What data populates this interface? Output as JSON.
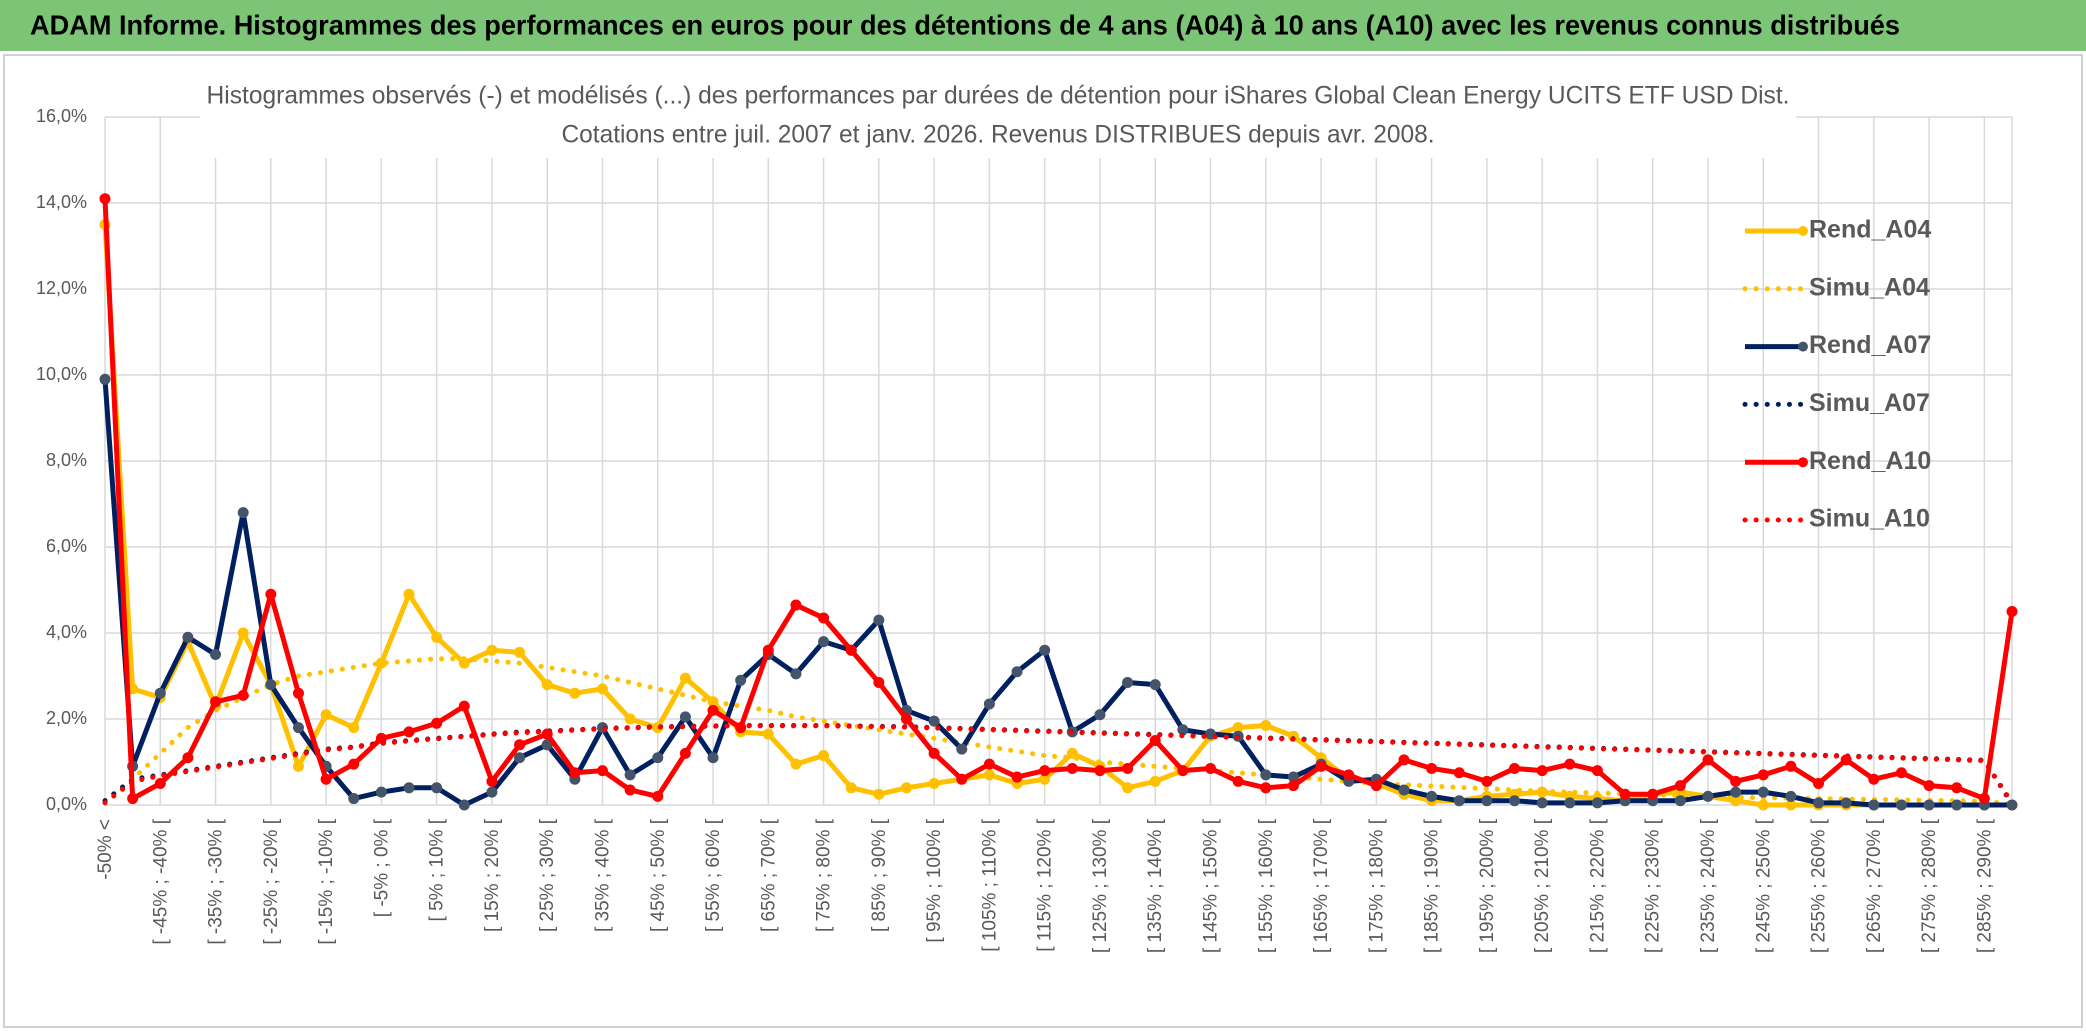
{
  "header": {
    "title": "ADAM Informe. Histogrammes des performances en euros pour des détentions de 4 ans (A04) à 10 ans (A10) avec les revenus connus distribués"
  },
  "chart_data": {
    "type": "line",
    "title": "Histogrammes observés (-) et modélisés (...) des performances par durées de détention pour iShares Global Clean Energy UCITS ETF USD Dist.",
    "subtitle": "Cotations entre juil. 2007 et janv. 2026. Revenus DISTRIBUES depuis avr. 2008.",
    "categories": [
      "-50% <",
      null,
      "[ -45% ; -40% [",
      null,
      "[ -35% ; -30% [",
      null,
      "[ -25% ; -20% [",
      null,
      "[ -15% ; -10% [",
      null,
      "[ -5% ; 0% [",
      null,
      "[ 5% ; 10% [",
      null,
      "[ 15% ; 20% [",
      null,
      "[ 25% ; 30% [",
      null,
      "[ 35% ; 40% [",
      null,
      "[ 45% ; 50% [",
      null,
      "[ 55% ; 60% [",
      null,
      "[ 65% ; 70% [",
      null,
      "[ 75% ; 80% [",
      null,
      "[ 85% ; 90% [",
      null,
      "[ 95% ; 100% [",
      null,
      "[ 105% ; 110% [",
      null,
      "[ 115% ; 120% [",
      null,
      "[ 125% ; 130% [",
      null,
      "[ 135% ; 140% [",
      null,
      "[ 145% ; 150% [",
      null,
      "[ 155% ; 160% [",
      null,
      "[ 165% ; 170% [",
      null,
      "[ 175% ; 180% [",
      null,
      "[ 185% ; 190% [",
      null,
      "[ 195% ; 200% [",
      null,
      "[ 205% ; 210% [",
      null,
      "[ 215% ; 220% [",
      null,
      "[ 225% ; 230% [",
      null,
      "[ 235% ; 240% [",
      null,
      "[ 245% ; 250% [",
      null,
      "[ 255% ; 260% [",
      null,
      "[ 265% ; 270% [",
      null,
      "[ 275% ; 280% [",
      null,
      "[ 285% ; 290% [",
      null
    ],
    "ylim": [
      0,
      16
    ],
    "yticks": [
      {
        "value": 0,
        "label": "0,0%"
      },
      {
        "value": 2,
        "label": "2,0%"
      },
      {
        "value": 4,
        "label": "4,0%"
      },
      {
        "value": 6,
        "label": "6,0%"
      },
      {
        "value": 8,
        "label": "8,0%"
      },
      {
        "value": 10,
        "label": "10,0%"
      },
      {
        "value": 12,
        "label": "12,0%"
      },
      {
        "value": 14,
        "label": "14,0%"
      },
      {
        "value": 16,
        "label": "16,0%"
      }
    ],
    "grid": true,
    "legend": "upper right",
    "series": [
      {
        "name": "Rend_A04",
        "color": "#FFC000",
        "marker_color": "#FFC000",
        "style": "solid",
        "values": [
          13.5,
          2.7,
          2.5,
          3.8,
          2.3,
          4.0,
          2.8,
          0.9,
          2.1,
          1.8,
          3.3,
          4.9,
          3.9,
          3.3,
          3.6,
          3.55,
          2.8,
          2.6,
          2.7,
          2.0,
          1.8,
          2.95,
          2.4,
          1.7,
          1.65,
          0.95,
          1.15,
          0.4,
          0.25,
          0.4,
          0.5,
          0.6,
          0.7,
          0.5,
          0.6,
          1.2,
          0.9,
          0.4,
          0.55,
          0.8,
          1.6,
          1.8,
          1.85,
          1.6,
          1.1,
          0.6,
          0.5,
          0.25,
          0.1,
          0.1,
          0.2,
          0.25,
          0.3,
          0.2,
          0.15,
          0.1,
          0.25,
          0.3,
          0.2,
          0.1,
          0.0,
          0.0,
          0.0,
          0.0,
          0.0,
          0.0,
          0.0,
          0.0,
          0.0,
          0.0
        ]
      },
      {
        "name": "Simu_A04",
        "color": "#FFC000",
        "style": "dotted",
        "values": [
          0.1,
          0.6,
          1.2,
          1.8,
          2.2,
          2.5,
          2.8,
          3.0,
          3.1,
          3.2,
          3.3,
          3.35,
          3.4,
          3.4,
          3.35,
          3.3,
          3.2,
          3.1,
          3.0,
          2.85,
          2.7,
          2.55,
          2.4,
          2.3,
          2.2,
          2.05,
          1.95,
          1.85,
          1.75,
          1.65,
          1.55,
          1.45,
          1.35,
          1.25,
          1.15,
          1.1,
          1.0,
          0.95,
          0.9,
          0.85,
          0.8,
          0.75,
          0.7,
          0.65,
          0.6,
          0.55,
          0.5,
          0.47,
          0.44,
          0.41,
          0.38,
          0.35,
          0.32,
          0.3,
          0.28,
          0.26,
          0.24,
          0.22,
          0.2,
          0.18,
          0.17,
          0.16,
          0.15,
          0.14,
          0.13,
          0.12,
          0.11,
          0.1,
          0.09,
          0.02
        ]
      },
      {
        "name": "Rend_A07",
        "color": "#002060",
        "marker_color": "#44546A",
        "style": "solid",
        "values": [
          9.9,
          0.9,
          2.6,
          3.9,
          3.5,
          6.8,
          2.8,
          1.8,
          0.9,
          0.15,
          0.3,
          0.4,
          0.4,
          0.0,
          0.3,
          1.1,
          1.4,
          0.6,
          1.8,
          0.7,
          1.1,
          2.05,
          1.1,
          2.9,
          3.5,
          3.05,
          3.8,
          3.6,
          4.3,
          2.2,
          1.95,
          1.3,
          2.35,
          3.1,
          3.6,
          1.7,
          2.1,
          2.85,
          2.8,
          1.75,
          1.65,
          1.6,
          0.7,
          0.65,
          0.95,
          0.55,
          0.6,
          0.35,
          0.2,
          0.1,
          0.1,
          0.1,
          0.05,
          0.05,
          0.05,
          0.1,
          0.1,
          0.1,
          0.2,
          0.3,
          0.3,
          0.2,
          0.05,
          0.05,
          0.0,
          0.0,
          0.0,
          0.0,
          0.0,
          0.0
        ]
      },
      {
        "name": "Simu_A07",
        "color": "#002060",
        "style": "dotted",
        "values": [
          0.1,
          0.6,
          0.7,
          0.8,
          0.9,
          1.0,
          1.1,
          1.2,
          1.3,
          1.35,
          1.45,
          1.5,
          1.55,
          1.6,
          1.65,
          1.7,
          1.72,
          1.75,
          1.78,
          1.8,
          1.82,
          1.83,
          1.84,
          1.85,
          1.85,
          1.85,
          1.85,
          1.84,
          1.83,
          1.82,
          1.8,
          1.78,
          1.76,
          1.74,
          1.72,
          1.7,
          1.68,
          1.66,
          1.64,
          1.62,
          1.6,
          1.58,
          1.56,
          1.54,
          1.52,
          1.5,
          1.48,
          1.46,
          1.44,
          1.42,
          1.4,
          1.38,
          1.36,
          1.34,
          1.32,
          1.3,
          1.28,
          1.26,
          1.24,
          1.22,
          1.2,
          1.18,
          1.16,
          1.14,
          1.12,
          1.1,
          1.08,
          1.06,
          1.04,
          0.02
        ]
      },
      {
        "name": "Rend_A10",
        "color": "#FF0000",
        "marker_color": "#FF0000",
        "style": "solid",
        "values": [
          14.1,
          0.15,
          0.5,
          1.1,
          2.4,
          2.55,
          4.9,
          2.6,
          0.6,
          0.95,
          1.55,
          1.7,
          1.9,
          2.3,
          0.55,
          1.4,
          1.65,
          0.75,
          0.8,
          0.35,
          0.2,
          1.2,
          2.2,
          1.8,
          3.6,
          4.65,
          4.35,
          3.6,
          2.85,
          2.0,
          1.2,
          0.6,
          0.95,
          0.65,
          0.8,
          0.85,
          0.8,
          0.85,
          1.5,
          0.8,
          0.85,
          0.55,
          0.4,
          0.45,
          0.9,
          0.7,
          0.45,
          1.05,
          0.85,
          0.75,
          0.55,
          0.85,
          0.8,
          0.95,
          0.8,
          0.25,
          0.25,
          0.45,
          1.05,
          0.55,
          0.7,
          0.9,
          0.5,
          1.05,
          0.6,
          0.75,
          0.45,
          0.4,
          0.15,
          4.5
        ]
      },
      {
        "name": "Simu_A10",
        "color": "#FF0000",
        "style": "dotted",
        "values": [
          0.05,
          0.55,
          0.68,
          0.78,
          0.88,
          0.98,
          1.08,
          1.18,
          1.28,
          1.34,
          1.43,
          1.49,
          1.54,
          1.59,
          1.64,
          1.68,
          1.71,
          1.74,
          1.77,
          1.79,
          1.81,
          1.82,
          1.83,
          1.84,
          1.84,
          1.84,
          1.84,
          1.83,
          1.82,
          1.81,
          1.79,
          1.77,
          1.75,
          1.73,
          1.71,
          1.69,
          1.67,
          1.65,
          1.63,
          1.61,
          1.59,
          1.57,
          1.55,
          1.53,
          1.51,
          1.49,
          1.47,
          1.45,
          1.43,
          1.41,
          1.39,
          1.37,
          1.35,
          1.33,
          1.31,
          1.29,
          1.27,
          1.25,
          1.23,
          1.21,
          1.19,
          1.17,
          1.15,
          1.13,
          1.11,
          1.09,
          1.07,
          1.05,
          1.03,
          0.05
        ]
      }
    ]
  }
}
